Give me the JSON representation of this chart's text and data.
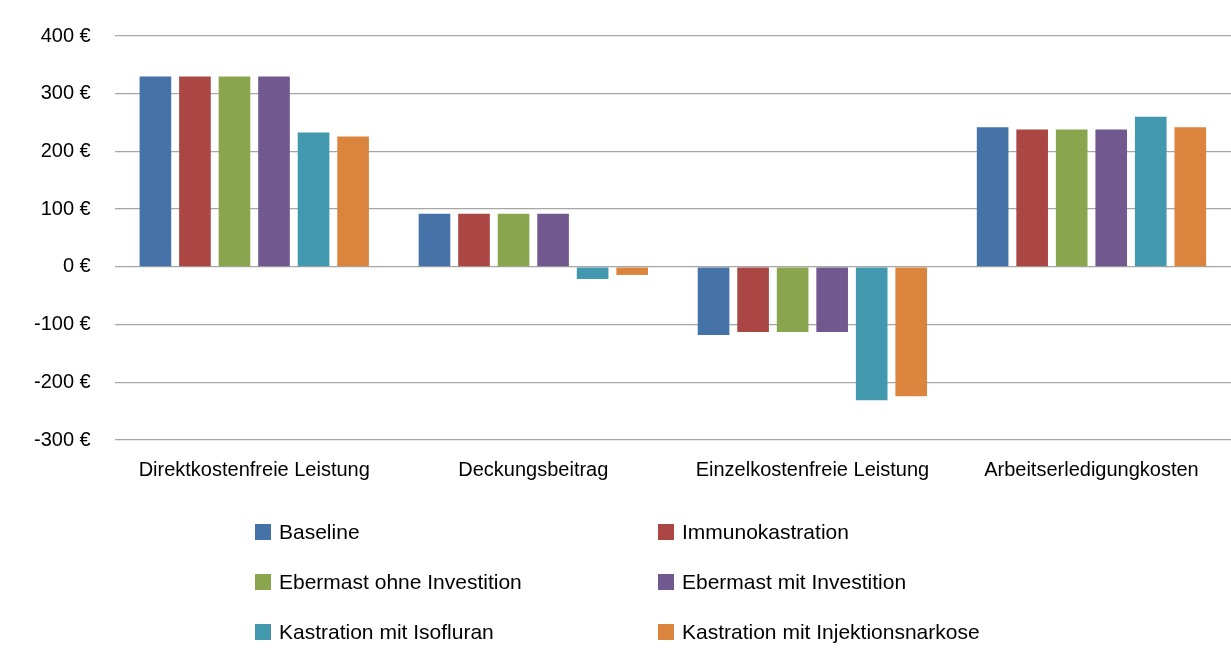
{
  "chart_data": {
    "type": "bar",
    "categories": [
      "Direktkostenfreie Leistung",
      "Deckungsbeitrag",
      "Einzelkostenfreie Leistung",
      "Arbeitserledigungkosten"
    ],
    "series": [
      {
        "name": "Baseline",
        "color": "#4572a7",
        "values": [
          330,
          92,
          -118,
          242
        ]
      },
      {
        "name": "Immunokastration",
        "color": "#aa4643",
        "values": [
          330,
          92,
          -113,
          238
        ]
      },
      {
        "name": "Ebermast ohne Investition",
        "color": "#89a54e",
        "values": [
          330,
          92,
          -113,
          238
        ]
      },
      {
        "name": "Ebermast mit Investition",
        "color": "#71588f",
        "values": [
          330,
          92,
          -113,
          238
        ]
      },
      {
        "name": "Kastration mit Isofluran",
        "color": "#4198af",
        "values": [
          233,
          -21,
          -231,
          260
        ]
      },
      {
        "name": "Kastration mit Injektionsnarkose",
        "color": "#db843d",
        "values": [
          226,
          -14,
          -224,
          242
        ]
      }
    ],
    "ylim": [
      -300,
      400
    ],
    "yticks": [
      {
        "value": -300,
        "label": "-300 €"
      },
      {
        "value": -200,
        "label": "-200 €"
      },
      {
        "value": -100,
        "label": "-100 €"
      },
      {
        "value": 0,
        "label": "0 €"
      },
      {
        "value": 100,
        "label": "100 €"
      },
      {
        "value": 200,
        "label": "200 €"
      },
      {
        "value": 300,
        "label": "300 €"
      },
      {
        "value": 400,
        "label": "400 €"
      }
    ],
    "grid": "y",
    "legend": "bottom"
  }
}
